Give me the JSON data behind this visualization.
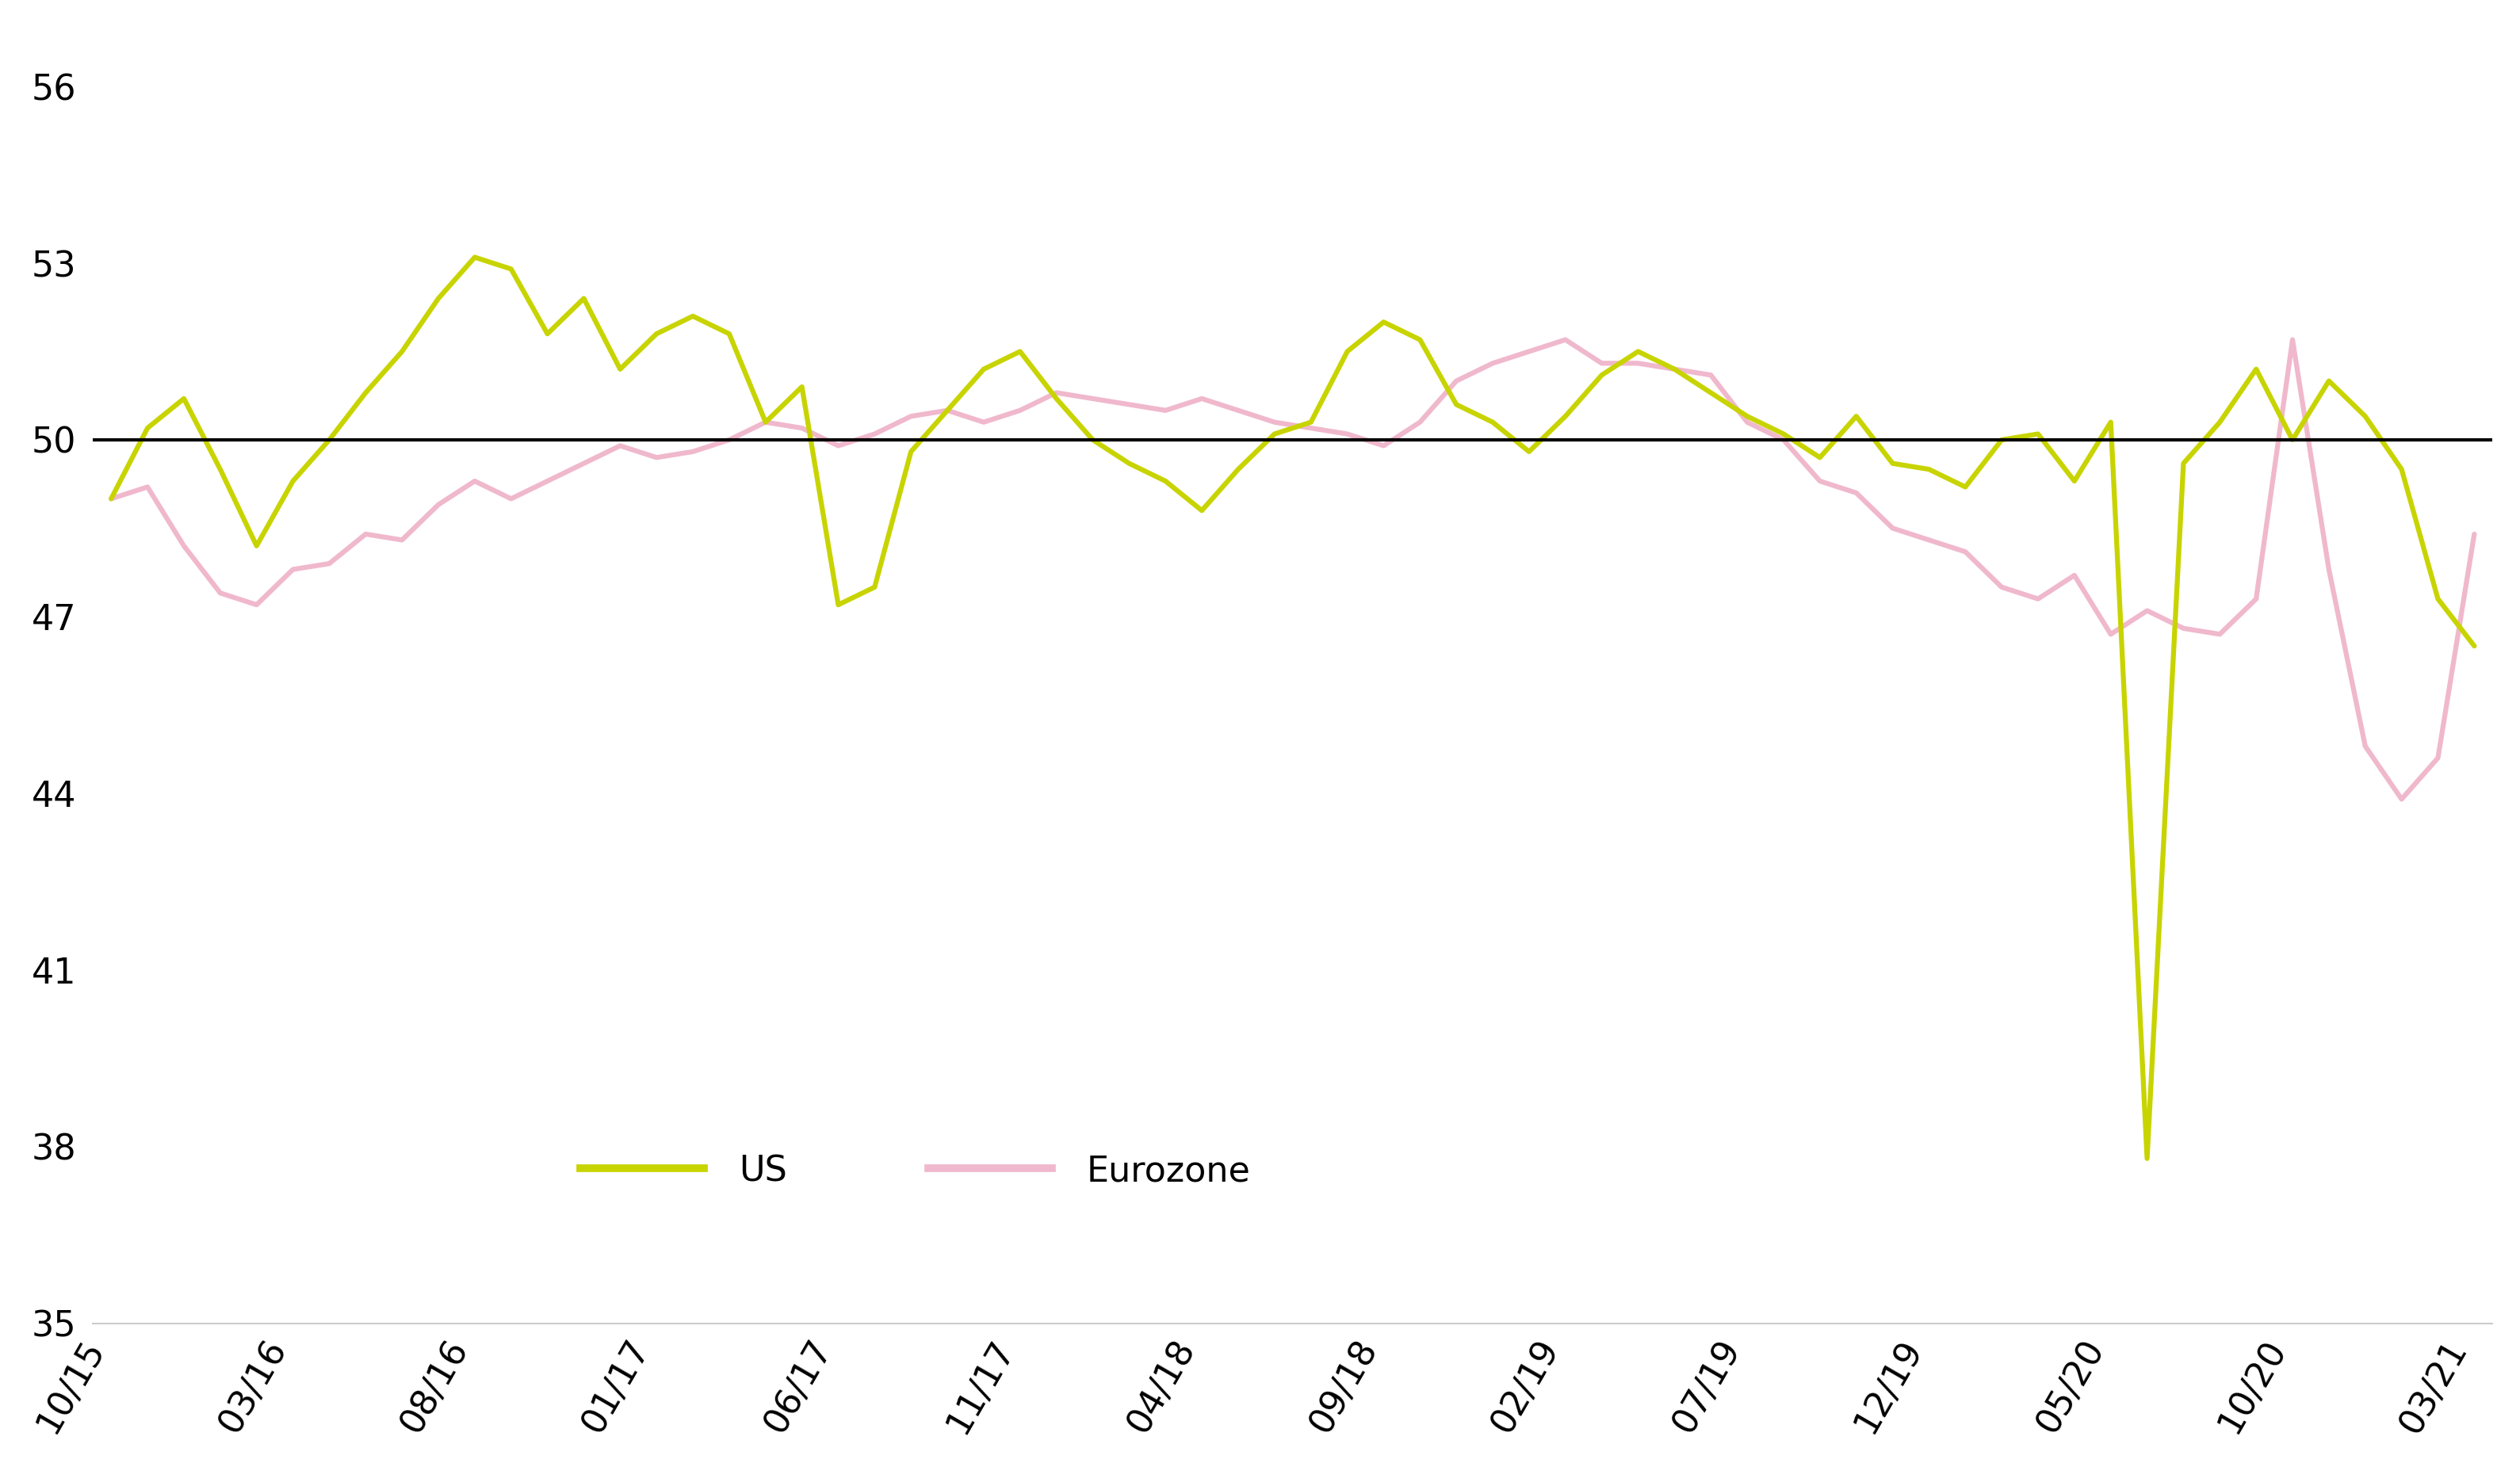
{
  "background_color": "#ffffff",
  "us_color": "#c8d400",
  "eurozone_color": "#f0b8cc",
  "reference_line_y": 50,
  "reference_line_color": "#000000",
  "ylim": [
    35,
    57
  ],
  "yticks": [
    35,
    38,
    41,
    44,
    47,
    50,
    53,
    56
  ],
  "x_tick_labels": [
    "10/15",
    "03/16",
    "08/16",
    "01/17",
    "06/17",
    "11/17",
    "04/18",
    "09/18",
    "02/19",
    "07/19",
    "12/19",
    "05/20",
    "10/20",
    "03/21"
  ],
  "legend_labels": [
    "US",
    "Eurozone"
  ],
  "legend_us_color": "#c8d400",
  "legend_eurozone_color": "#f0b8cc",
  "us_data": [
    49.0,
    50.2,
    50.7,
    49.5,
    48.2,
    49.3,
    50.0,
    50.8,
    51.5,
    52.4,
    53.1,
    52.9,
    51.8,
    52.4,
    51.2,
    51.8,
    52.1,
    51.8,
    50.3,
    50.9,
    47.2,
    47.5,
    49.8,
    50.5,
    51.2,
    51.5,
    50.7,
    50.0,
    49.6,
    49.3,
    48.8,
    49.5,
    50.1,
    50.3,
    51.5,
    52.0,
    51.7,
    50.6,
    50.3,
    49.8,
    50.4,
    51.1,
    51.5,
    51.2,
    50.8,
    50.4,
    50.1,
    49.7,
    50.4,
    49.6,
    49.5,
    49.2,
    50.0,
    50.1,
    49.3,
    50.3,
    37.8,
    49.6,
    50.3,
    51.2,
    50.0,
    51.0,
    50.4,
    49.5,
    47.3,
    46.5
  ],
  "eurozone_data": [
    49.0,
    49.2,
    48.2,
    47.4,
    47.2,
    47.8,
    47.9,
    48.4,
    48.3,
    48.9,
    49.3,
    49.0,
    49.3,
    49.6,
    49.9,
    49.7,
    49.8,
    50.0,
    50.3,
    50.2,
    49.9,
    50.1,
    50.4,
    50.5,
    50.3,
    50.5,
    50.8,
    50.7,
    50.6,
    50.5,
    50.7,
    50.5,
    50.3,
    50.2,
    50.1,
    49.9,
    50.3,
    51.0,
    51.3,
    51.5,
    51.7,
    51.3,
    51.3,
    51.2,
    51.1,
    50.3,
    50.0,
    49.3,
    49.1,
    48.5,
    48.3,
    48.1,
    47.5,
    47.3,
    47.7,
    46.7,
    47.1,
    46.8,
    46.7,
    47.3,
    51.7,
    47.8,
    44.8,
    43.9,
    44.6,
    48.4
  ]
}
